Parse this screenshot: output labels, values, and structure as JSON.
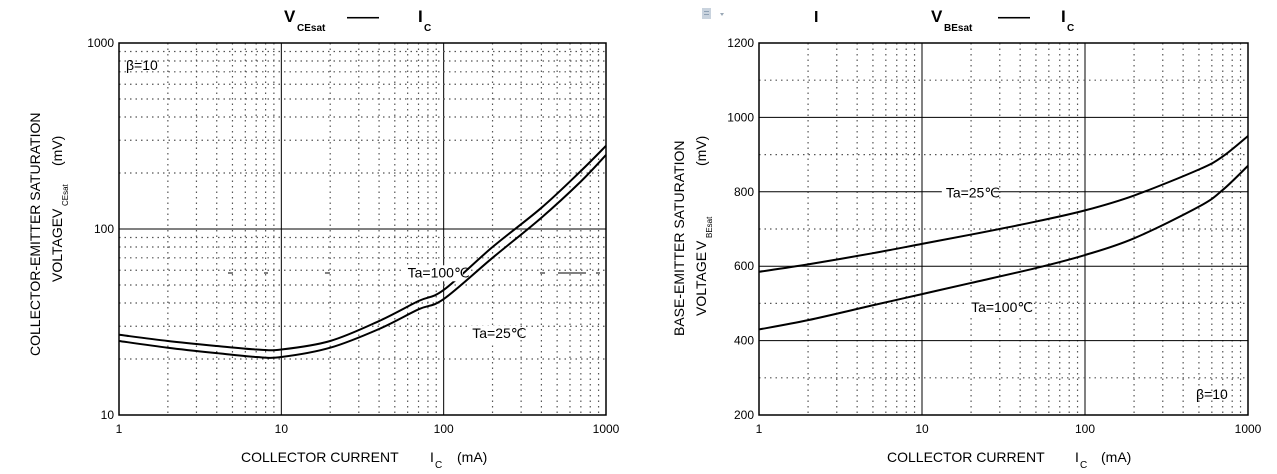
{
  "chart_data": [
    {
      "type": "line",
      "title": {
        "main": "V",
        "sub": "CEsat",
        "dash": "——",
        "ic": "I",
        "ic_sub": "C"
      },
      "xlabel": {
        "text": "COLLECTOR CURRENT",
        "sym": "I",
        "sub": "C",
        "unit": "(mA)"
      },
      "ylabel": {
        "line1": "COLLECTOR-EMITTER SATURATION",
        "line2": "VOLTAGE",
        "sym": "V",
        "sub": "CEsat",
        "unit": "(mV)"
      },
      "x_scale": "log",
      "y_scale": "log",
      "xlim": [
        1,
        1000
      ],
      "ylim": [
        10,
        1000
      ],
      "x_ticks": [
        "1",
        "10",
        "100",
        "1000"
      ],
      "y_ticks": [
        "10",
        "100",
        "1000"
      ],
      "note": "β=10",
      "series": [
        {
          "name": "Ta=100℃",
          "x": [
            1,
            2,
            4,
            7,
            10,
            20,
            40,
            70,
            100,
            200,
            400,
            700,
            1000
          ],
          "y": [
            27,
            25,
            23.5,
            22.5,
            22.5,
            25,
            32,
            41,
            47,
            80,
            130,
            205,
            280
          ]
        },
        {
          "name": "Ta=25℃",
          "x": [
            1,
            2,
            4,
            7,
            10,
            20,
            40,
            70,
            100,
            200,
            400,
            700,
            1000
          ],
          "y": [
            25,
            23,
            21.5,
            20.5,
            20.5,
            23,
            29,
            37,
            42,
            70,
            115,
            180,
            250
          ]
        }
      ],
      "labels": [
        {
          "text": "Ta=100℃",
          "x": 60,
          "y": 55
        },
        {
          "text": "Ta=25℃",
          "x": 150,
          "y": 26
        }
      ]
    },
    {
      "type": "line",
      "title": {
        "main": "V",
        "sub": "BEsat",
        "dash": "——",
        "ic": "I",
        "ic_sub": "C",
        "stray": "I"
      },
      "xlabel": {
        "text": "COLLECTOR CURRENT",
        "sym": "I",
        "sub": "C",
        "unit": "(mA)"
      },
      "ylabel": {
        "line1": "BASE-EMITTER SATURATION",
        "line2": "VOLTAGE",
        "sym": "V",
        "sub": "BEsat",
        "unit": "(mV)"
      },
      "x_scale": "log",
      "y_scale": "linear",
      "xlim": [
        1,
        1000
      ],
      "ylim": [
        200,
        1200
      ],
      "x_ticks": [
        "1",
        "10",
        "100",
        "1000"
      ],
      "y_ticks": [
        "200",
        "400",
        "600",
        "800",
        "1000",
        "1200"
      ],
      "note": "β=10",
      "series": [
        {
          "name": "Ta=25℃",
          "x": [
            1,
            2,
            5,
            10,
            20,
            50,
            100,
            200,
            500,
            700,
            1000
          ],
          "y": [
            585,
            605,
            635,
            660,
            685,
            720,
            750,
            790,
            860,
            895,
            950
          ]
        },
        {
          "name": "Ta=100℃",
          "x": [
            1,
            2,
            5,
            10,
            20,
            50,
            100,
            200,
            500,
            700,
            1000
          ],
          "y": [
            430,
            455,
            495,
            525,
            555,
            595,
            630,
            675,
            760,
            805,
            870
          ]
        }
      ],
      "labels": [
        {
          "text": "Ta=25℃",
          "x": 14,
          "y": 785
        },
        {
          "text": "Ta=100℃",
          "x": 20,
          "y": 477
        }
      ]
    }
  ]
}
